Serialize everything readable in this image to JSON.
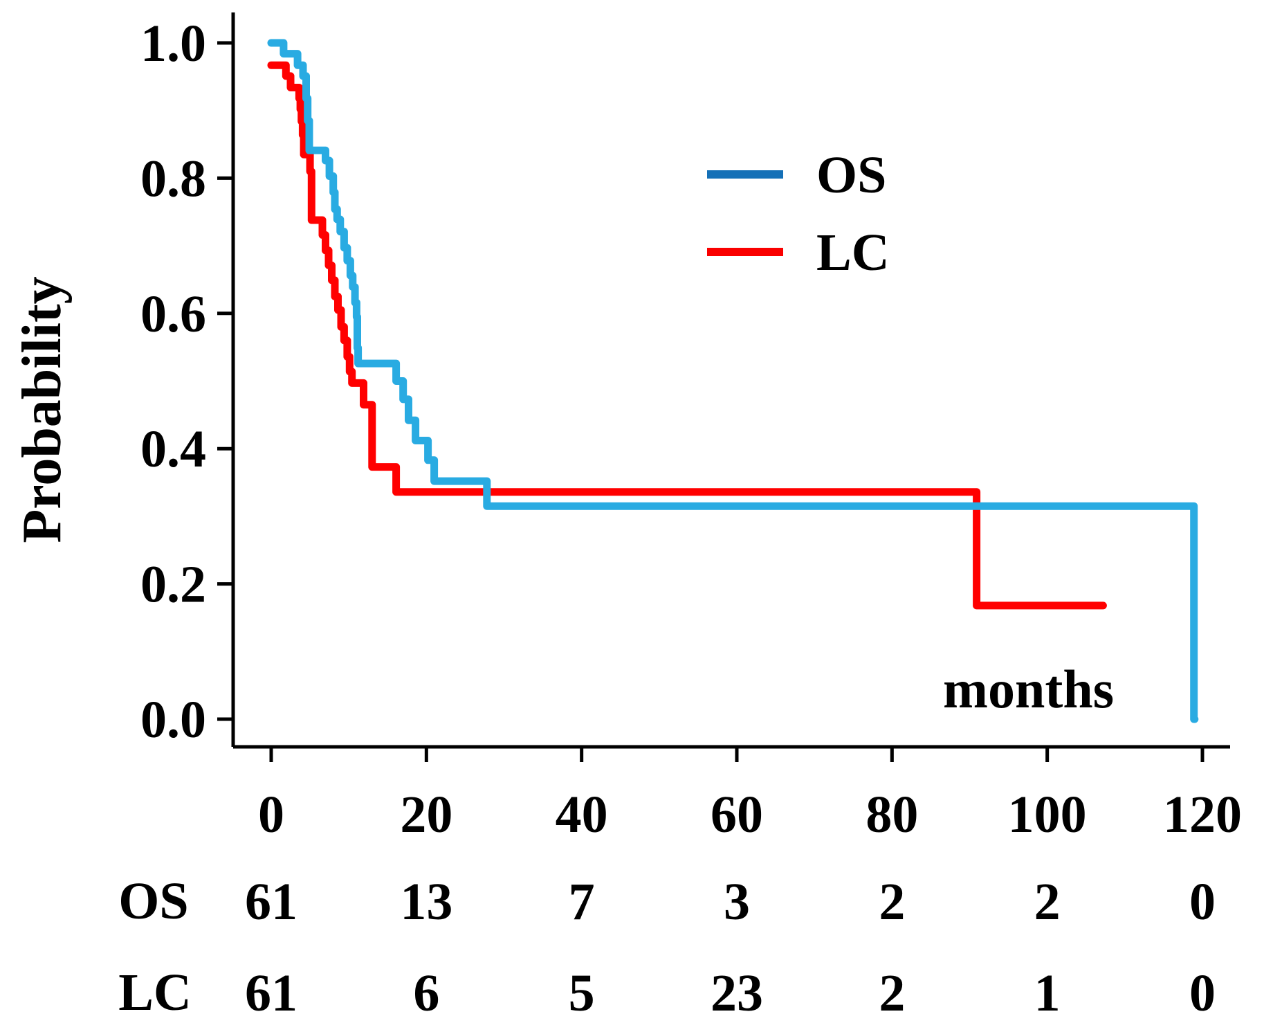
{
  "figure": {
    "kind": "kaplan-meier-survival-plot",
    "background": "#ffffff",
    "text_color": "#000000",
    "axis_color": "#000000"
  },
  "chart_data": {
    "type": "line",
    "subtype": "kaplan_meier_step",
    "title": "",
    "xlabel": "months",
    "ylabel": "Probability",
    "xlim": [
      0,
      120
    ],
    "ylim": [
      0.0,
      1.0
    ],
    "grid": false,
    "legend_position": "inside-upper-right",
    "x_ticks": [
      "0",
      "20",
      "40",
      "60",
      "80",
      "100",
      "120"
    ],
    "x_tick_values": [
      0,
      20,
      40,
      60,
      80,
      100,
      120
    ],
    "y_ticks": [
      "1.0",
      "0.8",
      "0.6",
      "0.4",
      "0.2",
      "0.0"
    ],
    "y_tick_values": [
      1.0,
      0.8,
      0.6,
      0.4,
      0.2,
      0.0
    ],
    "series": [
      {
        "name": "OS",
        "curve_color": "#29ABE2",
        "legend_color": "#1470B7",
        "end_time": 119.0,
        "steps": [
          [
            0,
            1.0
          ],
          [
            1.6,
            0.984
          ],
          [
            3.4,
            0.967
          ],
          [
            4.1,
            0.951
          ],
          [
            4.5,
            0.918
          ],
          [
            4.7,
            0.885
          ],
          [
            4.9,
            0.841
          ],
          [
            7.0,
            0.826
          ],
          [
            7.5,
            0.803
          ],
          [
            8.0,
            0.779
          ],
          [
            8.2,
            0.754
          ],
          [
            8.5,
            0.739
          ],
          [
            8.9,
            0.721
          ],
          [
            9.4,
            0.697
          ],
          [
            9.8,
            0.678
          ],
          [
            10.2,
            0.656
          ],
          [
            10.5,
            0.639
          ],
          [
            10.8,
            0.616
          ],
          [
            11.0,
            0.595
          ],
          [
            11.1,
            0.549
          ],
          [
            11.2,
            0.526
          ],
          [
            16.1,
            0.5
          ],
          [
            17.0,
            0.473
          ],
          [
            17.7,
            0.442
          ],
          [
            18.6,
            0.412
          ],
          [
            20.2,
            0.383
          ],
          [
            21.0,
            0.352
          ],
          [
            27.8,
            0.315
          ],
          [
            118.9,
            0.0
          ]
        ]
      },
      {
        "name": "LC",
        "curve_color": "#FF0000",
        "legend_color": "#FA0000",
        "end_time": 107.2,
        "steps": [
          [
            0,
            0.967
          ],
          [
            1.9,
            0.951
          ],
          [
            2.5,
            0.934
          ],
          [
            3.6,
            0.918
          ],
          [
            3.75,
            0.902
          ],
          [
            3.9,
            0.884
          ],
          [
            4.05,
            0.864
          ],
          [
            4.2,
            0.835
          ],
          [
            5.0,
            0.81
          ],
          [
            5.2,
            0.738
          ],
          [
            6.6,
            0.716
          ],
          [
            7.0,
            0.693
          ],
          [
            7.4,
            0.671
          ],
          [
            7.8,
            0.649
          ],
          [
            8.2,
            0.625
          ],
          [
            8.6,
            0.605
          ],
          [
            9.0,
            0.58
          ],
          [
            9.4,
            0.56
          ],
          [
            9.8,
            0.536
          ],
          [
            10.1,
            0.514
          ],
          [
            10.4,
            0.497
          ],
          [
            11.9,
            0.465
          ],
          [
            13.0,
            0.373
          ],
          [
            16.1,
            0.336
          ],
          [
            90.9,
            0.168
          ]
        ]
      }
    ],
    "at_risk_table": {
      "rows": [
        {
          "label": "OS",
          "values": [
            "61",
            "13",
            "7",
            "3",
            "2",
            "2",
            "0"
          ]
        },
        {
          "label": "LC",
          "values": [
            "61",
            "6",
            "5",
            "23",
            "2",
            "1",
            "0"
          ]
        }
      ]
    }
  }
}
